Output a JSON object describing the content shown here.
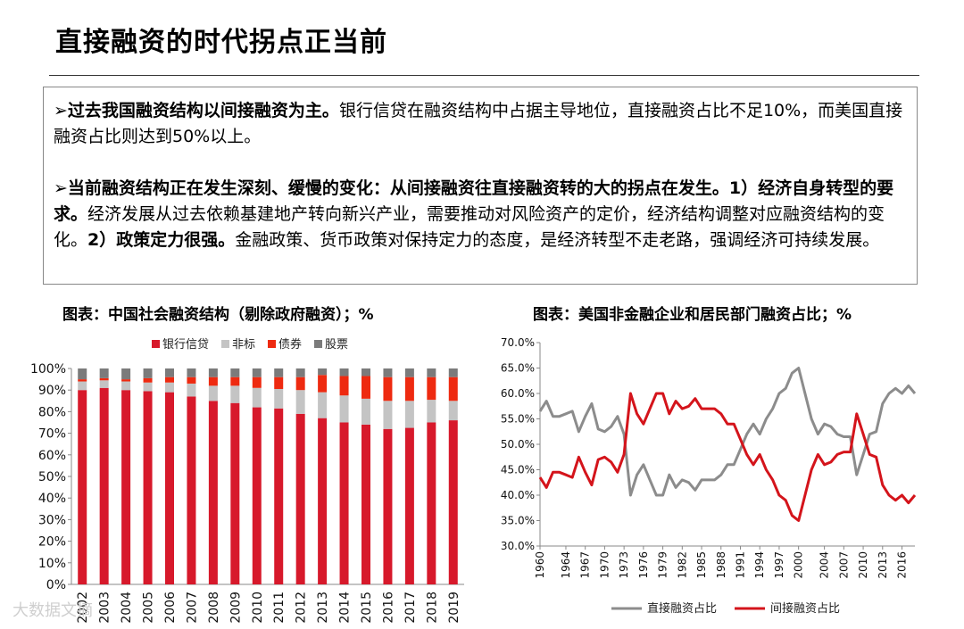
{
  "slide": {
    "title": "直接融资的时代拐点正当前",
    "bullet1_bold": "过去我国融资结构以间接融资为主。",
    "bullet1_rest": "银行信贷在融资结构中占据主导地位，直接融资占比不足10%，而美国直接融资占比则达到50%以上。",
    "bullet2_bold": "当前融资结构正在发生深刻、缓慢的变化：从间接融资往直接融资转的大的拐点在发生。1）经济自身转型的要求。",
    "bullet2_rest": "经济发展从过去依赖基建地产转向新兴产业，需要推动对风险资产的定价，经济结构调整对应融资结构的变化。",
    "bullet2_bold2": "2）政策定力很强。",
    "bullet2_rest2": "金融政策、货币政策对保持定力的态度，是经济转型不走老路，强调经济可持续发展。",
    "bullet_marker": "➢",
    "caption_left": "图表：中国社会融资结构（剔除政府融资）；%",
    "caption_right": "图表：美国非金融企业和居民部门融资占比；%",
    "watermark": "大数据文摘"
  },
  "colors": {
    "bank_credit": "#d7192b",
    "non_standard": "#c4c4c4",
    "bonds": "#ee2a10",
    "stocks": "#7b7b7b",
    "direct_line": "#8c8c8c",
    "indirect_line": "#d4141b"
  },
  "chart_data": [
    {
      "type": "bar",
      "stacked": true,
      "categories": [
        "2002",
        "2003",
        "2004",
        "2005",
        "2006",
        "2007",
        "2008",
        "2009",
        "2010",
        "2011",
        "2012",
        "2013",
        "2014",
        "2015",
        "2016",
        "2017",
        "2018",
        "2019"
      ],
      "series": [
        {
          "name": "银行信贷",
          "values": [
            90,
            91,
            90,
            89.5,
            89,
            87,
            85,
            84,
            82,
            81.5,
            79,
            77,
            75,
            74,
            72,
            72.5,
            75,
            76
          ]
        },
        {
          "name": "非标",
          "values": [
            4,
            3.5,
            4,
            4,
            4.5,
            6,
            7,
            8,
            9,
            9,
            11,
            12,
            12.5,
            12,
            13,
            12.5,
            10.5,
            9
          ]
        },
        {
          "name": "债券",
          "values": [
            1,
            1,
            1,
            2,
            2.5,
            3,
            4,
            4,
            5,
            5.5,
            6,
            8,
            9,
            10.5,
            11,
            11,
            10.5,
            11
          ]
        },
        {
          "name": "股票",
          "values": [
            5,
            4.5,
            5,
            4.5,
            4,
            4,
            4,
            4,
            4,
            4,
            4,
            3,
            3.5,
            3.5,
            4,
            4,
            4,
            4
          ]
        }
      ],
      "ylim": [
        0,
        100
      ],
      "y_ticks": [
        "0%",
        "10%",
        "20%",
        "30%",
        "40%",
        "50%",
        "60%",
        "70%",
        "80%",
        "90%",
        "100%"
      ],
      "legend": "top"
    },
    {
      "type": "line",
      "x": [
        1960,
        1961,
        1962,
        1963,
        1964,
        1965,
        1966,
        1967,
        1968,
        1969,
        1970,
        1971,
        1972,
        1973,
        1974,
        1975,
        1976,
        1977,
        1978,
        1979,
        1980,
        1981,
        1982,
        1983,
        1984,
        1985,
        1986,
        1987,
        1988,
        1989,
        1990,
        1991,
        1992,
        1993,
        1994,
        1995,
        1996,
        1997,
        1998,
        1999,
        2000,
        2001,
        2002,
        2003,
        2004,
        2005,
        2006,
        2007,
        2008,
        2009,
        2010,
        2011,
        2012,
        2013,
        2014,
        2015,
        2016,
        2017,
        2018
      ],
      "x_ticks": [
        "1960",
        "1964",
        "1967",
        "1970",
        "1973",
        "1976",
        "1979",
        "1982",
        "1985",
        "1988",
        "1991",
        "1994",
        "1997",
        "2000",
        "2004",
        "2007",
        "2010",
        "2013",
        "2016"
      ],
      "series": [
        {
          "name": "直接融资占比",
          "values": [
            56.5,
            58.5,
            55.5,
            55.5,
            56,
            56.5,
            52.5,
            55.5,
            58,
            53,
            52.5,
            53.5,
            55.5,
            52,
            40,
            44,
            46,
            43,
            40,
            40,
            44,
            41.5,
            43,
            42.5,
            41,
            43,
            43,
            43,
            44,
            46,
            46,
            49,
            52,
            54,
            52,
            55,
            57,
            60,
            61,
            64,
            65,
            60,
            55,
            52,
            54,
            53.5,
            52,
            51.5,
            51.5,
            44,
            48,
            52,
            52.5,
            58,
            60,
            61,
            60,
            61.5,
            60
          ]
        },
        {
          "name": "间接融资占比",
          "values": [
            43.5,
            41.5,
            44.5,
            44.5,
            44,
            43.5,
            47.5,
            44.5,
            42,
            47,
            47.5,
            46.5,
            44.5,
            48,
            60,
            56,
            54,
            57,
            60,
            60,
            56,
            58.5,
            57,
            57.5,
            59,
            57,
            57,
            57,
            56,
            54,
            54,
            51,
            48,
            46,
            48,
            45,
            43,
            40,
            39,
            36,
            35,
            40,
            45,
            48,
            46,
            46.5,
            48,
            48.5,
            48.5,
            56,
            52,
            48,
            47.5,
            42,
            40,
            39,
            40,
            38.5,
            40
          ]
        }
      ],
      "ylim": [
        30,
        70
      ],
      "y_ticks": [
        "30.0%",
        "35.0%",
        "40.0%",
        "45.0%",
        "50.0%",
        "55.0%",
        "60.0%",
        "65.0%",
        "70.0%"
      ],
      "legend": "bottom"
    }
  ]
}
